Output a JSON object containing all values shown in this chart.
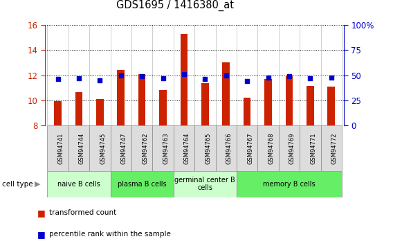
{
  "title": "GDS1695 / 1416380_at",
  "samples": [
    "GSM94741",
    "GSM94744",
    "GSM94745",
    "GSM94747",
    "GSM94762",
    "GSM94763",
    "GSM94764",
    "GSM94765",
    "GSM94766",
    "GSM94767",
    "GSM94768",
    "GSM94769",
    "GSM94771",
    "GSM94772"
  ],
  "transformed_counts": [
    9.95,
    10.65,
    10.1,
    12.4,
    12.1,
    10.8,
    15.3,
    11.35,
    13.05,
    10.2,
    11.7,
    12.0,
    11.15,
    11.1
  ],
  "percentile_ranks": [
    46,
    47,
    45,
    50,
    49,
    47,
    51,
    46,
    50,
    44,
    48,
    49,
    47,
    48
  ],
  "ylim_left": [
    8,
    16
  ],
  "ylim_right": [
    0,
    100
  ],
  "yticks_left": [
    8,
    10,
    12,
    14,
    16
  ],
  "yticks_right": [
    0,
    25,
    50,
    75,
    100
  ],
  "bar_color": "#cc2200",
  "dot_color": "#0000cc",
  "cell_types": [
    {
      "label": "naive B cells",
      "start": 0,
      "end": 3,
      "color": "#ccffcc"
    },
    {
      "label": "plasma B cells",
      "start": 3,
      "end": 6,
      "color": "#66ee66"
    },
    {
      "label": "germinal center B\ncells",
      "start": 6,
      "end": 9,
      "color": "#ccffcc"
    },
    {
      "label": "memory B cells",
      "start": 9,
      "end": 14,
      "color": "#66ee66"
    }
  ],
  "legend_label_count": "transformed count",
  "legend_label_pct": "percentile rank within the sample",
  "cell_type_label": "cell type",
  "bar_color_hex": "#cc2200",
  "dot_color_hex": "#0000cc",
  "bar_base": 8,
  "bar_width": 0.35,
  "xlabel_color": "#cc2200",
  "ylabel_right_color": "#0000cc",
  "ytick_labels_right": [
    "0",
    "25",
    "50",
    "75",
    "100%"
  ],
  "sample_box_color": "#dddddd",
  "grid_linestyle": "dotted"
}
